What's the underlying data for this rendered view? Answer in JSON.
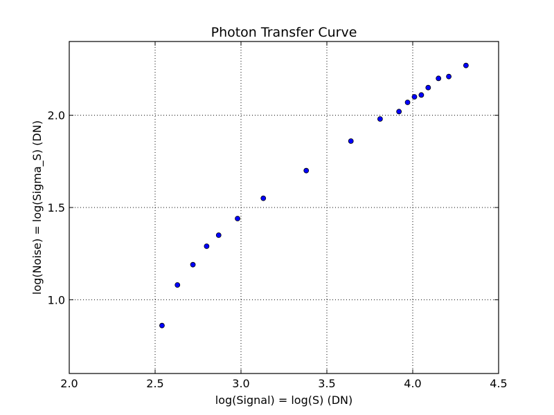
{
  "chart_data": {
    "type": "scatter",
    "title": "Photon Transfer Curve",
    "xlabel": "log(Signal) = log(S) (DN)",
    "ylabel": "log(Noise) = log(Sigma_S) (DN)",
    "xlim": [
      2.0,
      4.5
    ],
    "ylim": [
      0.6,
      2.4
    ],
    "xticks": [
      2.0,
      2.5,
      3.0,
      3.5,
      4.0,
      4.5
    ],
    "xtick_labels": [
      "2.0",
      "2.5",
      "3.0",
      "3.5",
      "4.0",
      "4.5"
    ],
    "yticks": [
      1.0,
      1.5,
      2.0
    ],
    "ytick_labels": [
      "1.0",
      "1.5",
      "2.0"
    ],
    "grid": true,
    "marker_color": "#0000ff",
    "series": [
      {
        "x": [
          2.54,
          2.63,
          2.72,
          2.8,
          2.87,
          2.98,
          3.13,
          3.38,
          3.64,
          3.81,
          3.92,
          3.97,
          4.01,
          4.05,
          4.09,
          4.15,
          4.21,
          4.31
        ],
        "y": [
          0.86,
          1.08,
          1.19,
          1.29,
          1.35,
          1.44,
          1.55,
          1.7,
          1.86,
          1.98,
          2.02,
          2.07,
          2.1,
          2.11,
          2.15,
          2.2,
          2.21,
          2.27
        ]
      }
    ]
  }
}
